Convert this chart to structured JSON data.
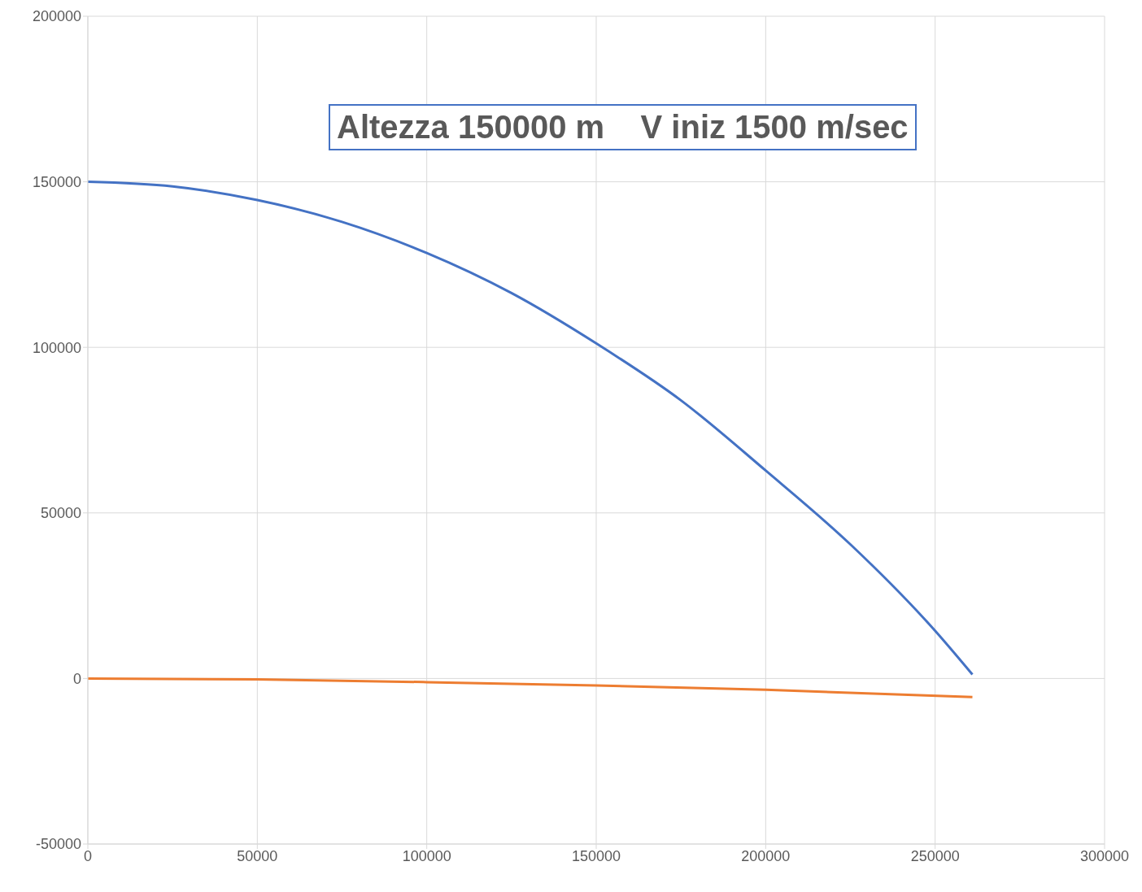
{
  "chart_data": {
    "type": "line",
    "title": "Altezza 150000 m    V iniz 1500 m/sec",
    "series": [
      {
        "color": "#4472c4",
        "x": [
          0,
          25000,
          50000,
          75000,
          100000,
          125000,
          150000,
          175000,
          200000,
          225000,
          250000,
          261000
        ],
        "values": [
          150000,
          148600,
          144500,
          137900,
          128500,
          116400,
          101200,
          84000,
          62800,
          40500,
          14400,
          1200
        ]
      },
      {
        "color": "#ed7d31",
        "x": [
          0,
          50000,
          100000,
          150000,
          200000,
          261000
        ],
        "values": [
          0,
          -300,
          -1100,
          -2100,
          -3400,
          -5600
        ]
      }
    ],
    "xlim": [
      0,
      300000
    ],
    "xticks": [
      0,
      50000,
      100000,
      150000,
      200000,
      250000,
      300000
    ],
    "ylim": [
      -50000,
      200000
    ],
    "yticks": [
      -50000,
      0,
      50000,
      100000,
      150000,
      200000
    ],
    "grid": true,
    "marker": "none",
    "line_style": "solid"
  }
}
